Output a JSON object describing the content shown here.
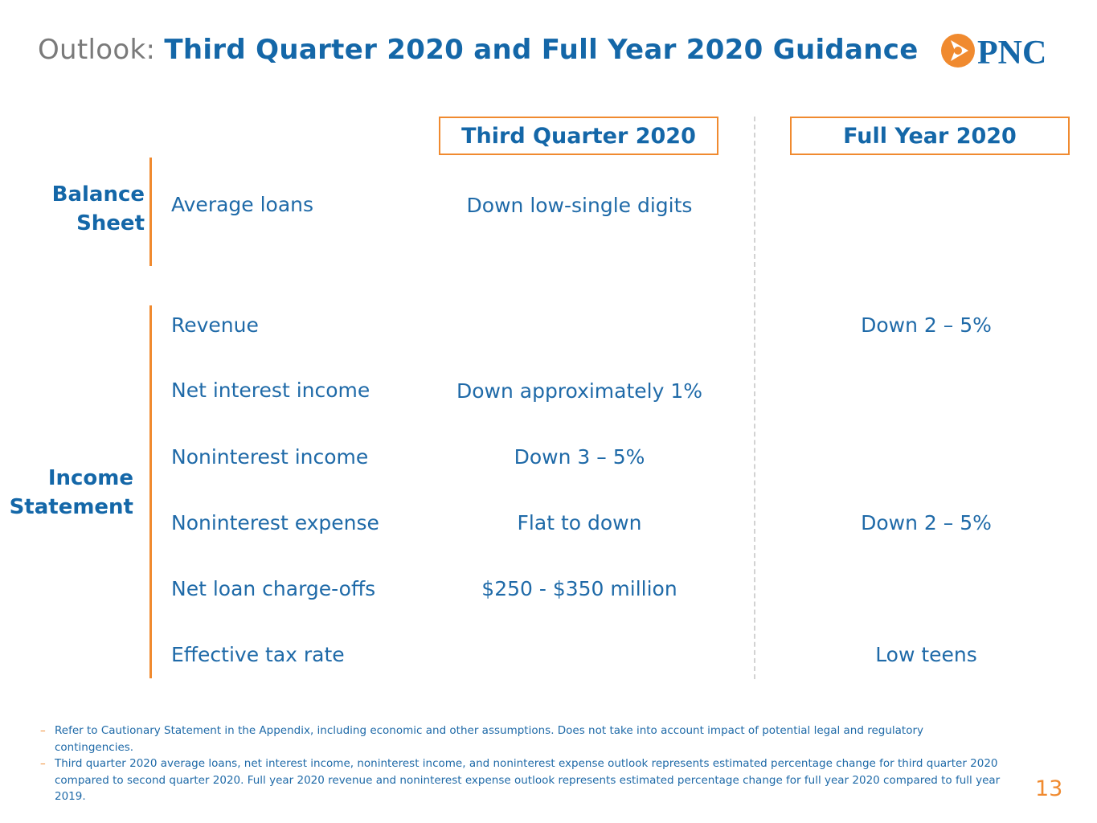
{
  "title": {
    "lead": "Outlook:",
    "main": "Third Quarter 2020 and Full Year 2020 Guidance"
  },
  "logo": {
    "text": "PNC",
    "icon": "pnc-arrow-logo-icon",
    "brand_color": "#f08a2f",
    "text_color": "#1467a8"
  },
  "columns": {
    "q3": "Third Quarter 2020",
    "fy": "Full Year 2020"
  },
  "sections": {
    "balance_sheet": {
      "label_line1": "Balance",
      "label_line2": "Sheet"
    },
    "income_statement": {
      "label_line1": "Income",
      "label_line2": "Statement"
    }
  },
  "rows": [
    {
      "label": "Average loans",
      "q3": "Down low-single digits",
      "fy": ""
    },
    {
      "label": "Revenue",
      "q3": "",
      "fy": "Down 2 – 5%"
    },
    {
      "label": "Net interest income",
      "q3": "Down approximately 1%",
      "fy": ""
    },
    {
      "label": "Noninterest income",
      "q3": "Down 3 – 5%",
      "fy": ""
    },
    {
      "label": "Noninterest expense",
      "q3": "Flat to down",
      "fy": "Down 2 – 5%"
    },
    {
      "label": "Net loan charge-offs",
      "q3": "$250 - $350 million",
      "fy": ""
    },
    {
      "label": "Effective tax rate",
      "q3": "",
      "fy": "Low teens"
    }
  ],
  "notes": [
    "Refer to Cautionary Statement in the Appendix, including economic and other assumptions. Does not take into account impact of potential legal and regulatory contingencies.",
    "Third quarter 2020 average loans, net interest income, noninterest income, and noninterest expense outlook represents estimated percentage change for third quarter 2020 compared to second quarter 2020. Full year 2020 revenue and noninterest expense outlook represents estimated percentage change for full year 2020 compared to full year 2019."
  ],
  "note_bullet": "–",
  "page_number": "13",
  "colors": {
    "accent_orange": "#f08a2f",
    "heading_blue": "#1467a8",
    "text_blue": "#1f6aa8",
    "muted_gray": "#7a7a7a"
  }
}
